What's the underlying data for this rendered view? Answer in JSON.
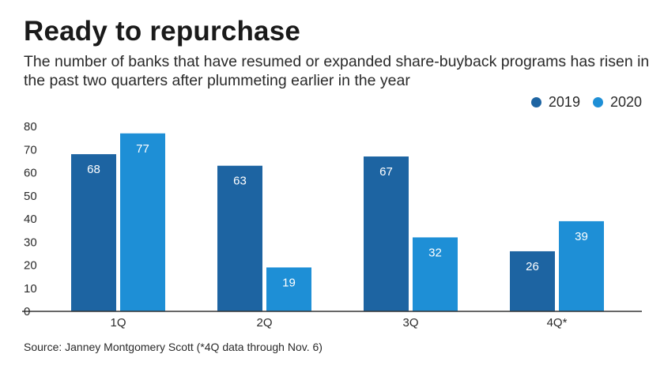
{
  "title": "Ready to repurchase",
  "subtitle": "The number of banks that have resumed or expanded share-buyback programs has risen in the past two quarters after plummeting earlier in the year",
  "source": "Source: Janney Montgomery Scott (*4Q data through Nov. 6)",
  "colors": {
    "series_2019": "#1d64a2",
    "series_2020": "#1e8fd6",
    "axis": "#333333"
  },
  "chart_data": {
    "type": "bar",
    "title": "Ready to repurchase",
    "xlabel": "",
    "ylabel": "",
    "categories": [
      "1Q",
      "2Q",
      "3Q",
      "4Q*"
    ],
    "series": [
      {
        "name": "2019",
        "values": [
          68,
          63,
          67,
          26
        ]
      },
      {
        "name": "2020",
        "values": [
          77,
          19,
          32,
          39
        ]
      }
    ],
    "ylim": [
      0,
      80
    ],
    "yticks": [
      0,
      10,
      20,
      30,
      40,
      50,
      60,
      70,
      80
    ],
    "grid": false,
    "legend": "top-right",
    "data_labels": true
  }
}
